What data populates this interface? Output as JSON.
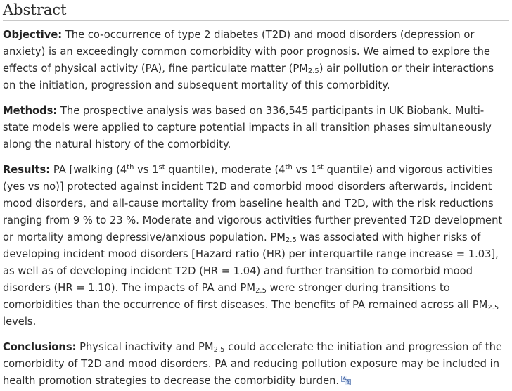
{
  "heading": "Abstract",
  "objective": {
    "label": "Objective:",
    "t1": " The co-occurrence of type 2 diabetes (T2D) and mood disorders (depression or anxiety) is an exceedingly common comorbidity with poor prognosis. We aimed to explore the effects of physical activity (PA), fine particulate matter (PM",
    "sub1": "2.5",
    "t2": ") air pollution or their interactions on the initiation, progression and subsequent mortality of this comorbidity."
  },
  "methods": {
    "label": "Methods:",
    "text": " The prospective analysis was based on 336,545 participants in UK Biobank. Multi-state models were applied to capture potential impacts in all transition phases simultaneously along the natural history of the comorbidity."
  },
  "results": {
    "label": "Results:",
    "t1": " PA [walking (4",
    "sup1": "th",
    "t2": " vs 1",
    "sup2": "st",
    "t3": " quantile), moderate (4",
    "sup3": "th",
    "t4": " vs 1",
    "sup4": "st",
    "t5": " quantile) and vigorous activities (yes vs no)] protected against incident T2D and comorbid mood disorders afterwards, incident mood disorders, and all-cause mortality from baseline health and T2D, with the risk reductions ranging from 9 % to 23 %. Moderate and vigorous activities further prevented T2D development or mortality among depressive/anxious population. PM",
    "sub1": "2.5",
    "t6": " was associated with higher risks of developing incident mood disorders [Hazard ratio (HR) per interquartile range increase = 1.03], as well as of developing incident T2D (HR = 1.04) and further transition to comorbid mood disorders (HR = 1.10). The impacts of PA and PM",
    "sub2": "2.5",
    "t7": " were stronger during transitions to comorbidities than the occurrence of first diseases. The benefits of PA remained across all PM",
    "sub3": "2.5",
    "t8": " levels."
  },
  "conclusions": {
    "label": "Conclusions:",
    "t1": " Physical inactivity and PM",
    "sub1": "2.5",
    "t2": " could accelerate the initiation and progression of the comorbidity of T2D and mood disorders. PA and reducing pollution exposure may be included in health promotion strategies to decrease the comorbidity burden.",
    "icon": "translate-icon"
  }
}
